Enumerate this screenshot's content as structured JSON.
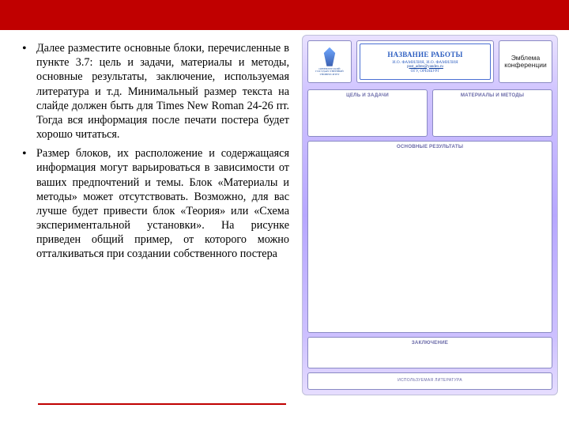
{
  "colors": {
    "accent": "#c00000",
    "poster_top": "#e9e1ff",
    "poster_mid": "#b7a7ff"
  },
  "bullets": [
    "Далее разместите основные блоки, перечисленные в пункте 3.7: цель и задачи, материалы и методы, основные результаты, заключение, используемая литература и т.д. Минимальный размер текста на слайде должен быть для Times New Roman 24-26 пт. Тогда вся информация после печати постера будет хорошо читаться.",
    "Размер блоков, их расположение и содержащаяся информация могут варьироваться в зависимости от ваших предпочтений и темы. Блок «Материалы и методы» может отсутствовать. Возможно, для вас лучше будет привести блок «Теория» или «Схема экспериментальной установки». На рисунке приведен общий пример, от которого можно отталкиваться при создании собственного постера"
  ],
  "poster": {
    "logo_txt": "ОРЕНБУРГСКИЙ ГОСУДАРСТВЕННЫЙ УНИВЕРСИТЕТ",
    "title": "НАЗВАНИЕ РАБОТЫ",
    "subtitle": "И.О. ФАМИЛИЯ, И.О. ФАМИЛИЯ",
    "mail": "post_adres@yandex.ru",
    "org": "ОГУ, ОРЕНБУРГ",
    "emblem": "Эмблема конференции",
    "panels": {
      "goals": "ЦЕЛЬ И ЗАДАЧИ",
      "methods": "МАТЕРИАЛЫ И МЕТОДЫ",
      "results": "ОСНОВНЫЕ РЕЗУЛЬТАТЫ",
      "conclusion": "ЗАКЛЮЧЕНИЕ",
      "refs": "ИСПОЛЬЗУЕМАЯ  ЛИТЕРАТУРА"
    }
  }
}
